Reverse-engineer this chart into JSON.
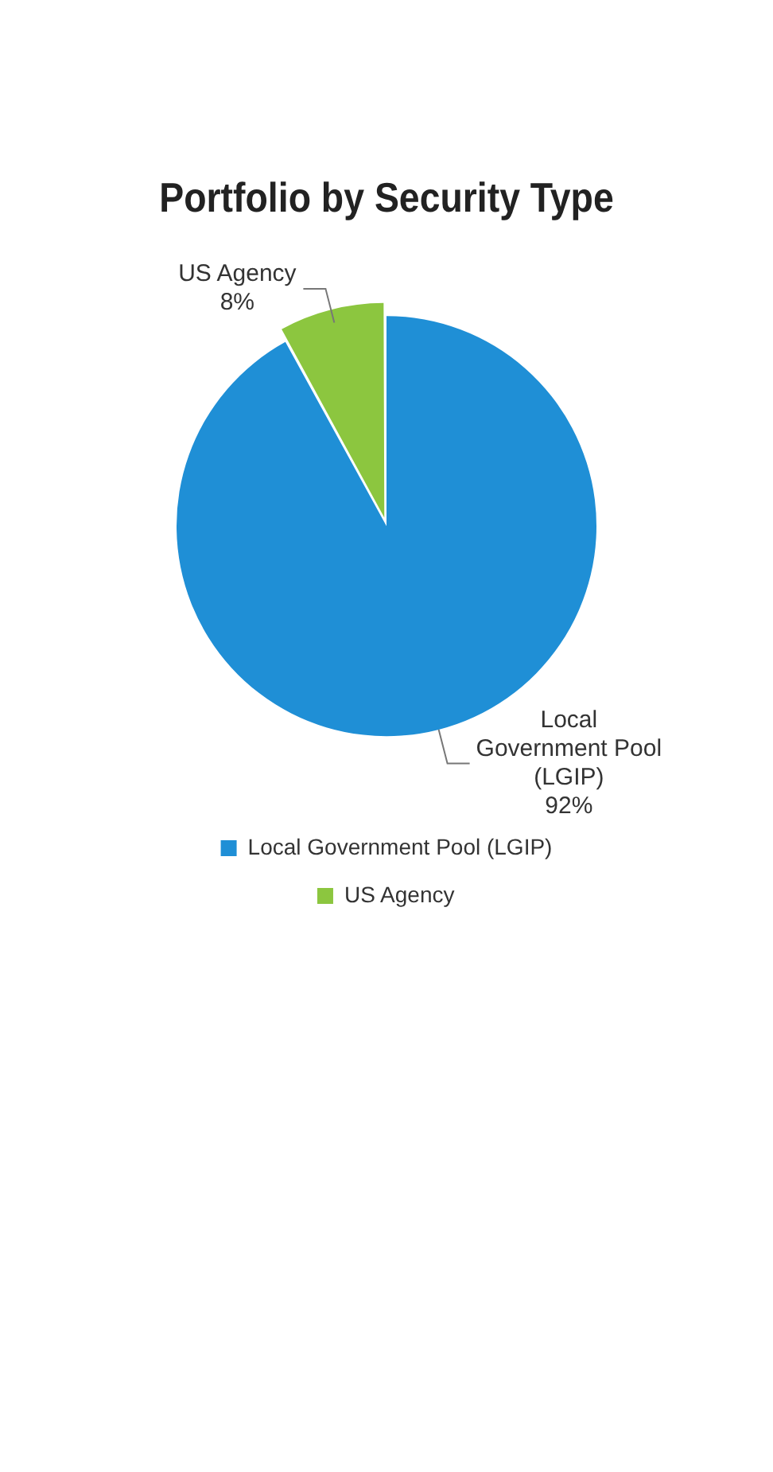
{
  "chart_data": {
    "type": "pie",
    "title": "Portfolio by Security Type",
    "categories": [
      "Local Government Pool (LGIP)",
      "US Agency"
    ],
    "values": [
      92,
      8
    ],
    "colors": [
      "#1f8fd6",
      "#8cc63f"
    ],
    "value_labels": [
      "92%",
      "8%"
    ],
    "legend": "bottom"
  }
}
